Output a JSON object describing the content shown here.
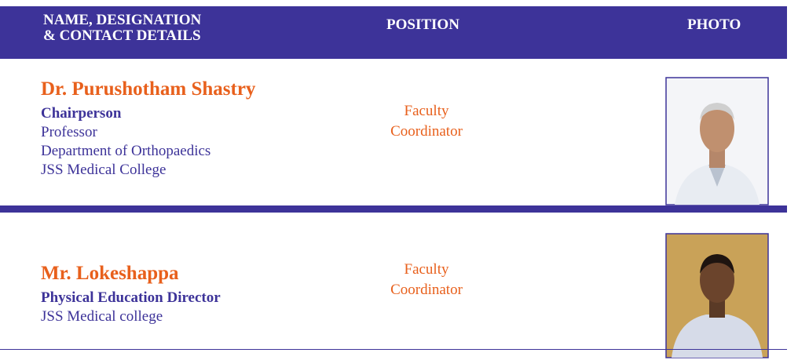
{
  "header": {
    "columns": [
      [
        "NAME, DESIGNATION",
        "& CONTACT DETAILS"
      ],
      [
        "POSITION"
      ],
      [
        "PHOTO"
      ]
    ]
  },
  "rows": [
    {
      "name": "Dr. Purushotham Shastry",
      "designation": "Chairperson",
      "details": [
        "Professor",
        "Department of Orthopaedics",
        "JSS Medical College"
      ],
      "position": [
        "Faculty",
        "Coordinator"
      ]
    },
    {
      "name": "Mr. Lokeshappa",
      "designation": "Physical Education Director",
      "details": [
        "JSS Medical college"
      ],
      "position": [
        "Faculty",
        "Coordinator"
      ]
    }
  ]
}
